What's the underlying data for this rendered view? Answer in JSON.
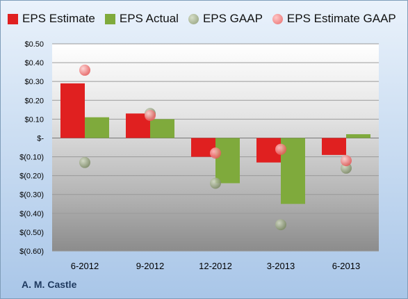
{
  "company": "A. M. Castle",
  "colors": {
    "eps_estimate": "#e02020",
    "eps_actual": "#7faa3c",
    "eps_gaap": "#a9b594",
    "eps_estimate_gaap": "#f08a8a"
  },
  "chart_data": {
    "type": "bar",
    "title": "",
    "xlabel": "",
    "ylabel": "",
    "categories": [
      "6-2012",
      "9-2012",
      "12-2012",
      "3-2013",
      "6-2013"
    ],
    "ylim": [
      -0.6,
      0.5
    ],
    "yticks": [
      0.5,
      0.4,
      0.3,
      0.2,
      0.1,
      0.0,
      -0.1,
      -0.2,
      -0.3,
      -0.4,
      -0.5,
      -0.6
    ],
    "ytick_labels": [
      "$0.50",
      "$0.40",
      "$0.30",
      "$0.20",
      "$0.10",
      "$-",
      "$(0.10)",
      "$(0.20)",
      "$(0.30)",
      "$(0.40)",
      "$(0.50)",
      "$(0.60)"
    ],
    "grid": true,
    "legend_position": "top",
    "bar_series": [
      {
        "name": "EPS Estimate",
        "values": [
          0.29,
          0.13,
          -0.1,
          -0.13,
          -0.09
        ]
      },
      {
        "name": "EPS Actual",
        "values": [
          0.11,
          0.1,
          -0.24,
          -0.35,
          0.02
        ]
      }
    ],
    "point_series": [
      {
        "name": "EPS GAAP",
        "values": [
          -0.13,
          0.13,
          -0.24,
          -0.46,
          -0.16
        ]
      },
      {
        "name": "EPS Estimate GAAP",
        "values": [
          0.36,
          0.12,
          -0.08,
          -0.06,
          -0.12
        ]
      }
    ]
  }
}
